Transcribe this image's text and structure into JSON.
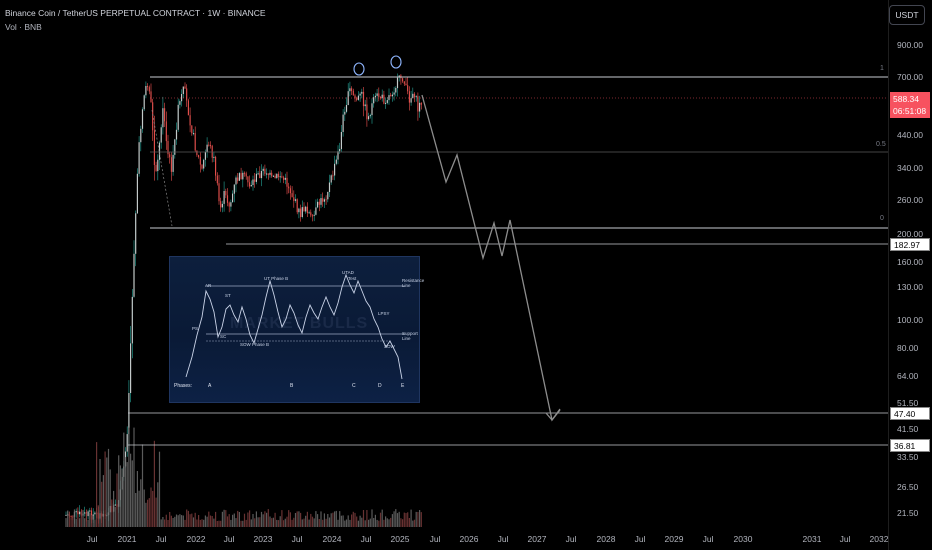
{
  "header": {
    "title": "Binance Coin / TetherUS PERPETUAL CONTRACT · 1W · BINANCE",
    "volume_label": "Vol · BNB"
  },
  "currency_button": "USDT",
  "price_scale": {
    "ticks": [
      "900.00",
      "700.00",
      "440.00",
      "340.00",
      "260.00",
      "200.00",
      "160.00",
      "130.00",
      "100.00",
      "80.00",
      "64.00",
      "51.50",
      "41.50",
      "33.50",
      "26.50",
      "21.50"
    ],
    "current_price": "588.34",
    "countdown": "06:51:08",
    "level_badges": [
      "182.97",
      "47.40",
      "36.81"
    ]
  },
  "time_scale": {
    "labels": [
      "Jul",
      "2021",
      "Jul",
      "2022",
      "Jul",
      "2023",
      "Jul",
      "2024",
      "Jul",
      "2025",
      "Jul",
      "2026",
      "Jul",
      "2027",
      "Jul",
      "2028",
      "Jul",
      "2029",
      "Jul",
      "2030",
      "2031",
      "Jul",
      "2032"
    ]
  },
  "fib_labels": [
    "1",
    "0.5",
    "0"
  ],
  "colors": {
    "up": "#26a69a",
    "down": "#ef5350",
    "candle_body": "#d6d6d6",
    "horizontal_line": "#d1d4dc",
    "projection": "#8d8d8d",
    "price_line": "#f7525f",
    "inset_bg": "#0d1f3d"
  },
  "inset": {
    "labels": {
      "ar": "AR",
      "st": "ST",
      "sc": "SC",
      "ps": "PS",
      "ut_phase_b": "UT Phase B",
      "sow_phase_b": "SOW Phase B",
      "utad": "UTAD",
      "test": "Test",
      "lpsy": "LPSY",
      "sow": "SOW",
      "resistance_line": "Resistance Line",
      "support_line": "Support Line"
    },
    "phases": {
      "label": "Phases:",
      "a": "A",
      "b": "B",
      "c": "C",
      "d": "D",
      "e": "E"
    },
    "watermark": "MARKET BULLS"
  }
}
